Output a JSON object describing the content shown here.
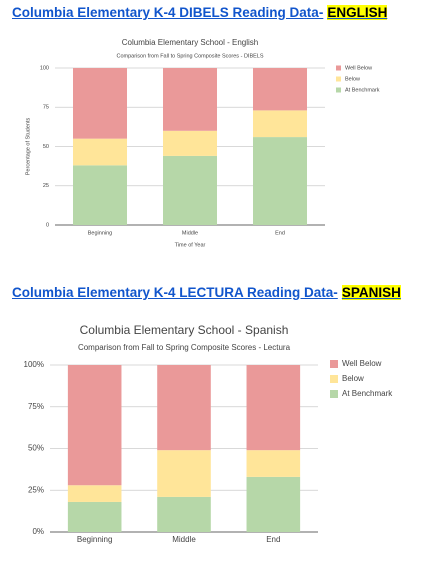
{
  "heading_1": {
    "text": "Columbia Elementary K-4 DIBELS Reading Data-",
    "highlight": "ENGLISH"
  },
  "heading_2": {
    "text": "Columbia Elementary K-4 LECTURA Reading Data-",
    "highlight": "SPANISH"
  },
  "chart_data": [
    {
      "type": "stacked_bar",
      "title": "Columbia Elementary School - English",
      "subtitle": "Comparison from Fall to Spring Composite Scores - DIBELS",
      "x_label": "Time of Year",
      "y_label": "Percentage of Students",
      "categories": [
        "Beginning",
        "Middle",
        "End"
      ],
      "series": [
        {
          "name": "At Benchmark",
          "color": "#b6d7a8",
          "values": [
            38,
            44,
            56
          ]
        },
        {
          "name": "Below",
          "color": "#ffe599",
          "values": [
            17,
            16,
            17
          ]
        },
        {
          "name": "Well Below",
          "color": "#ea9999",
          "values": [
            45,
            40,
            27
          ]
        }
      ],
      "ylim": [
        0,
        100
      ],
      "yticks": [
        0,
        25,
        50,
        75,
        100
      ],
      "grid": true,
      "legend": "right"
    },
    {
      "type": "stacked_bar",
      "title": "Columbia Elementary School - Spanish",
      "subtitle": "Comparison from Fall to Spring Composite Scores - Lectura",
      "categories": [
        "Beginning",
        "Middle",
        "End"
      ],
      "series": [
        {
          "name": "At Benchmark",
          "color": "#b6d7a8",
          "values": [
            18,
            21,
            33
          ]
        },
        {
          "name": "Below",
          "color": "#ffe599",
          "values": [
            10,
            28,
            16
          ]
        },
        {
          "name": "Well Below",
          "color": "#ea9999",
          "values": [
            72,
            51,
            51
          ]
        }
      ],
      "ylim": [
        0,
        100
      ],
      "yticks": [
        {
          "value": 0,
          "label": "0%"
        },
        {
          "value": 25,
          "label": "25%"
        },
        {
          "value": 50,
          "label": "50%"
        },
        {
          "value": 75,
          "label": "75%"
        },
        {
          "value": 100,
          "label": "100%"
        }
      ],
      "grid": true,
      "legend": "right"
    }
  ]
}
